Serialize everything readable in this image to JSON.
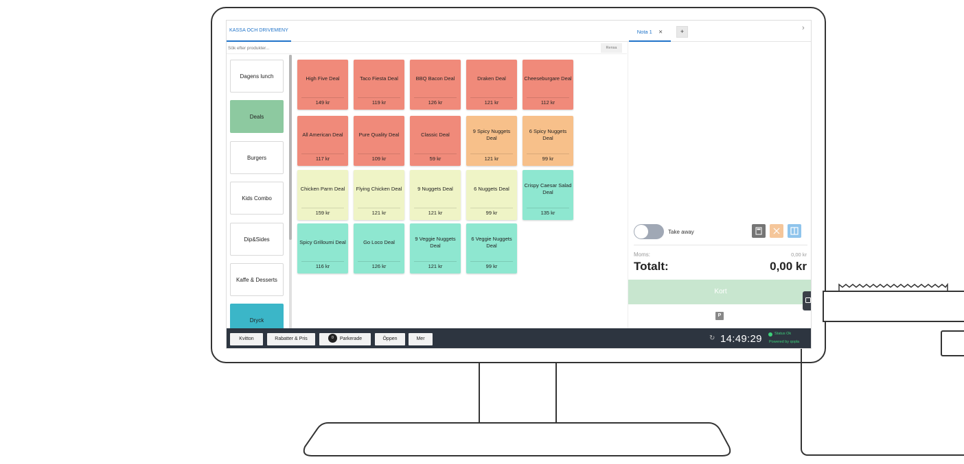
{
  "tabs": {
    "menu": "KASSA OCH DRIVEMENY",
    "order": "Nota 1",
    "order_close": "✕",
    "add": "+",
    "collapse": "›"
  },
  "search": {
    "placeholder": "Sök efter produkter...",
    "clear_label": "Rensa"
  },
  "categories": [
    {
      "label": "Dagens lunch",
      "state": "normal"
    },
    {
      "label": "Deals",
      "state": "active"
    },
    {
      "label": "Burgers",
      "state": "normal"
    },
    {
      "label": "Kids Combo",
      "state": "normal"
    },
    {
      "label": "Dip&Sides",
      "state": "normal"
    },
    {
      "label": "Kaffe & Desserts",
      "state": "normal"
    },
    {
      "label": "Dryck",
      "state": "highlight"
    }
  ],
  "colors": {
    "red": "#f08a7a",
    "orange": "#f7c08a",
    "yellow": "#eff4c6",
    "teal": "#8ee7d0",
    "accent": "#1f73c9",
    "status": "#3dd17a"
  },
  "products": [
    {
      "name": "High Five Deal",
      "price": "149 kr",
      "color": "red"
    },
    {
      "name": "Taco Fiesta Deal",
      "price": "119 kr",
      "color": "red"
    },
    {
      "name": "BBQ Bacon Deal",
      "price": "126 kr",
      "color": "red"
    },
    {
      "name": "Draken Deal",
      "price": "121 kr",
      "color": "red"
    },
    {
      "name": "Cheeseburgare Deal",
      "price": "112 kr",
      "color": "red"
    },
    {
      "name": "All American Deal",
      "price": "117 kr",
      "color": "red"
    },
    {
      "name": "Pure Quality Deal",
      "price": "109 kr",
      "color": "red"
    },
    {
      "name": "Classic Deal",
      "price": "59 kr",
      "color": "red"
    },
    {
      "name": "9 Spicy Nuggets Deal",
      "price": "121 kr",
      "color": "orange"
    },
    {
      "name": "6 Spicy Nuggets Deal",
      "price": "99 kr",
      "color": "orange"
    },
    {
      "name": "Chicken Parm Deal",
      "price": "159 kr",
      "color": "yellow"
    },
    {
      "name": "Flying Chicken Deal",
      "price": "121 kr",
      "color": "yellow"
    },
    {
      "name": "9 Nuggets Deal",
      "price": "121 kr",
      "color": "yellow"
    },
    {
      "name": "6 Nuggets Deal",
      "price": "99 kr",
      "color": "yellow"
    },
    {
      "name": "Crispy Caesar Salad Deal",
      "price": "135 kr",
      "color": "teal"
    },
    {
      "name": "Spicy Grilloumi Deal",
      "price": "116 kr",
      "color": "teal"
    },
    {
      "name": "Go Loco Deal",
      "price": "126 kr",
      "color": "teal"
    },
    {
      "name": "9 Veggie Nuggets Deal",
      "price": "121 kr",
      "color": "teal"
    },
    {
      "name": "6 Veggie Nuggets Deal",
      "price": "99 kr",
      "color": "teal"
    }
  ],
  "order": {
    "takeaway_label": "Take away",
    "takeaway_on": false,
    "moms_label": "Moms:",
    "moms_value": "0,00 kr",
    "total_label": "Totalt:",
    "total_value": "0,00 kr",
    "pay_label": "Kort",
    "park_icon_label": "P",
    "icons": [
      "calculator-icon",
      "cancel-icon",
      "split-icon"
    ]
  },
  "footer": {
    "buttons": [
      "Kvitton",
      "Rabatter & Pris",
      "Parkerade",
      "Öppen",
      "Mer"
    ],
    "parked_count": "0",
    "refresh_icon": "↻",
    "time": "14:49:29",
    "status": "Status Ok",
    "powered_by": "Powered by qopla"
  }
}
